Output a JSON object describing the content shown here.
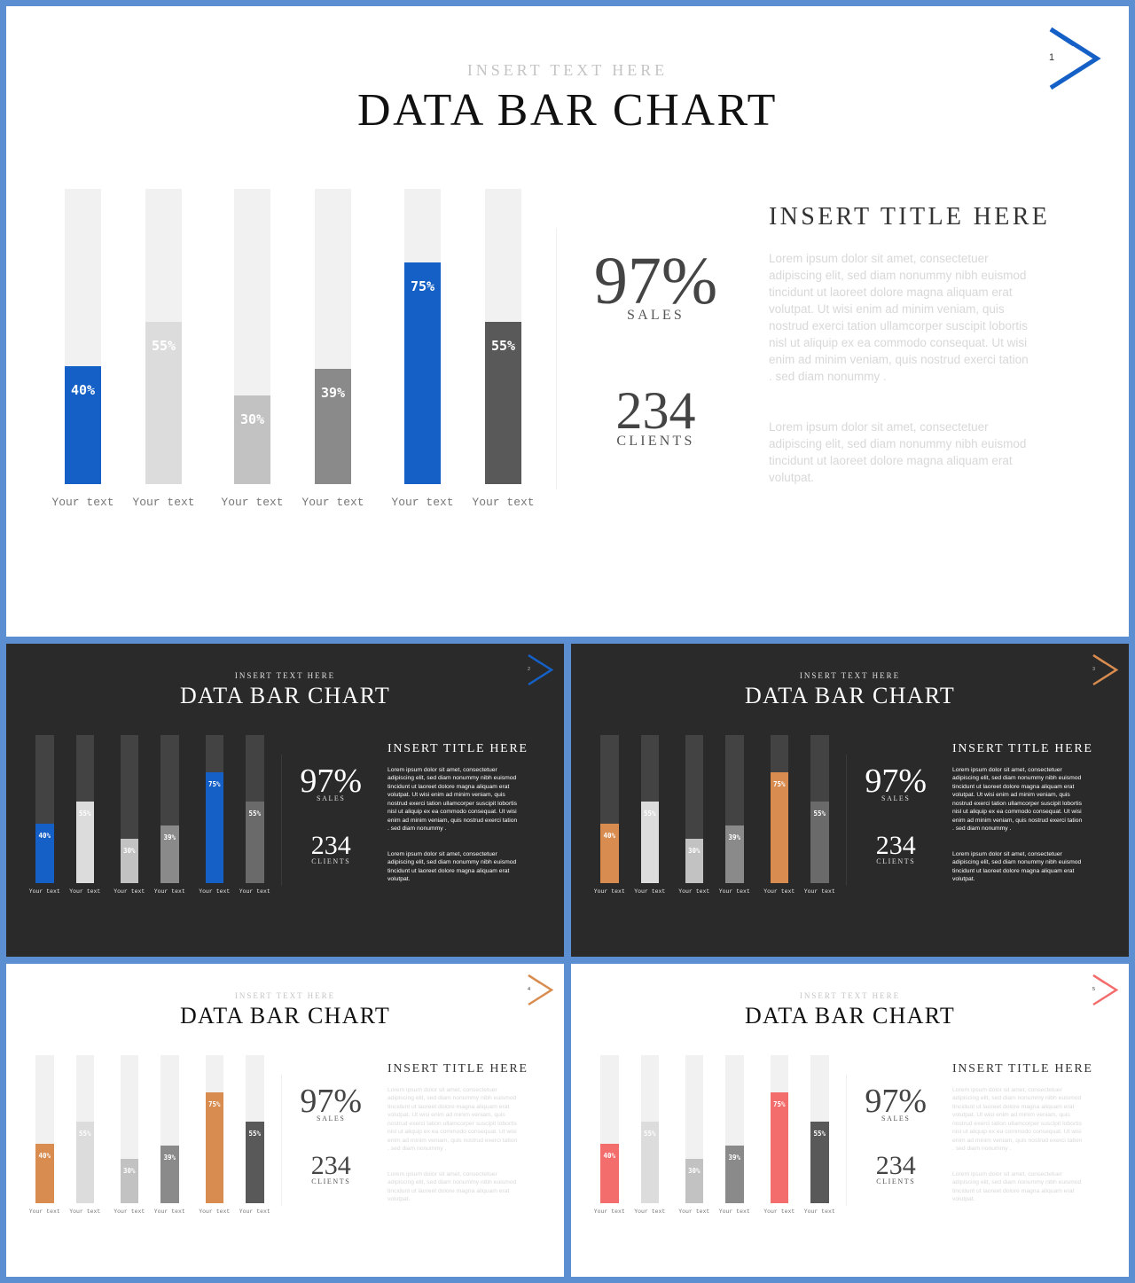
{
  "chart_data": [
    {
      "type": "bar",
      "categories": [
        "Your text",
        "Your text",
        "Your text",
        "Your text",
        "Your text",
        "Your text"
      ],
      "values": [
        40,
        55,
        30,
        39,
        75,
        55
      ],
      "value_labels": [
        "40%",
        "55%",
        "30%",
        "39%",
        "75%",
        "55%"
      ],
      "ylim": [
        0,
        100
      ],
      "title": "DATA BAR CHART",
      "subtitle": "INSERT TEXT HERE"
    }
  ],
  "slides": [
    {
      "theme": "light",
      "number": "1",
      "subtitle": "INSERT TEXT HERE",
      "title": "DATA BAR CHART",
      "accent": "#1560c6",
      "bar_colors": [
        "#1560c6",
        "#dcdcdc",
        "#c2c2c2",
        "#8a8a8a",
        "#1560c6",
        "#595959"
      ],
      "stat1": {
        "value": "97%",
        "label": "SALES"
      },
      "stat2": {
        "value": "234",
        "label": "CLIENTS"
      },
      "side_title": "INSERT TITLE HERE",
      "para1": "Lorem ipsum dolor sit amet, consectetuer adipiscing elit, sed diam nonummy nibh euismod tincidunt ut laoreet dolore magna aliquam erat volutpat. Ut wisi enim ad minim veniam, quis nostrud exerci tation ullamcorper suscipit lobortis nisl ut aliquip ex ea commodo consequat. Ut wisi enim ad minim veniam, quis nostrud exerci tation . sed diam nonummy .",
      "para2": "Lorem ipsum dolor sit amet, consectetuer adipiscing elit, sed diam nonummy nibh euismod tincidunt ut laoreet dolore magna aliquam erat volutpat."
    },
    {
      "theme": "dark",
      "number": "2",
      "subtitle": "INSERT TEXT HERE",
      "title": "DATA BAR CHART",
      "accent": "#1560c6",
      "bar_colors": [
        "#1560c6",
        "#dcdcdc",
        "#c2c2c2",
        "#8a8a8a",
        "#1560c6",
        "#6a6a6a"
      ],
      "stat1": {
        "value": "97%",
        "label": "SALES"
      },
      "stat2": {
        "value": "234",
        "label": "CLIENTS"
      },
      "side_title": "INSERT TITLE HERE",
      "para1": "Lorem ipsum dolor sit amet, consectetuer adipiscing elit, sed diam nonummy nibh euismod tincidunt ut laoreet dolore magna aliquam erat volutpat. Ut wisi enim ad minim veniam, quis nostrud exerci tation ullamcorper suscipit lobortis nisl ut aliquip ex ea commodo consequat. Ut wisi enim ad minim veniam, quis nostrud exerci tation . sed diam nonummy .",
      "para2": "Lorem ipsum dolor sit amet, consectetuer adipiscing elit, sed diam nonummy nibh euismod tincidunt ut laoreet dolore magna aliquam erat volutpat."
    },
    {
      "theme": "dark",
      "number": "3",
      "subtitle": "INSERT TEXT HERE",
      "title": "DATA BAR CHART",
      "accent": "#d98c4f",
      "bar_colors": [
        "#d98c4f",
        "#dcdcdc",
        "#c2c2c2",
        "#8a8a8a",
        "#d98c4f",
        "#6a6a6a"
      ],
      "stat1": {
        "value": "97%",
        "label": "SALES"
      },
      "stat2": {
        "value": "234",
        "label": "CLIENTS"
      },
      "side_title": "INSERT TITLE HERE",
      "para1": "Lorem ipsum dolor sit amet, consectetuer adipiscing elit, sed diam nonummy nibh euismod tincidunt ut laoreet dolore magna aliquam erat volutpat. Ut wisi enim ad minim veniam, quis nostrud exerci tation ullamcorper suscipit lobortis nisl ut aliquip ex ea commodo consequat. Ut wisi enim ad minim veniam, quis nostrud exerci tation . sed diam nonummy .",
      "para2": "Lorem ipsum dolor sit amet, consectetuer adipiscing elit, sed diam nonummy nibh euismod tincidunt ut laoreet dolore magna aliquam erat volutpat."
    },
    {
      "theme": "light",
      "number": "4",
      "subtitle": "INSERT TEXT HERE",
      "title": "DATA BAR CHART",
      "accent": "#d98c4f",
      "bar_colors": [
        "#d98c4f",
        "#dcdcdc",
        "#c2c2c2",
        "#8a8a8a",
        "#d98c4f",
        "#595959"
      ],
      "stat1": {
        "value": "97%",
        "label": "SALES"
      },
      "stat2": {
        "value": "234",
        "label": "CLIENTS"
      },
      "side_title": "INSERT TITLE HERE",
      "para1": "Lorem ipsum dolor sit amet, consectetuer adipiscing elit, sed diam nonummy nibh euismod tincidunt ut laoreet dolore magna aliquam erat volutpat. Ut wisi enim ad minim veniam, quis nostrud exerci tation ullamcorper suscipit lobortis nisl ut aliquip ex ea commodo consequat. Ut wisi enim ad minim veniam, quis nostrud exerci tation . sed diam nonummy .",
      "para2": "Lorem ipsum dolor sit amet, consectetuer adipiscing elit, sed diam nonummy nibh euismod tincidunt ut laoreet dolore magna aliquam erat volutpat."
    },
    {
      "theme": "light",
      "number": "5",
      "subtitle": "INSERT TEXT HERE",
      "title": "DATA BAR CHART",
      "accent": "#f46d6d",
      "bar_colors": [
        "#f46d6d",
        "#dcdcdc",
        "#c2c2c2",
        "#8a8a8a",
        "#f46d6d",
        "#595959"
      ],
      "stat1": {
        "value": "97%",
        "label": "SALES"
      },
      "stat2": {
        "value": "234",
        "label": "CLIENTS"
      },
      "side_title": "INSERT TITLE HERE",
      "para1": "Lorem ipsum dolor sit amet, consectetuer adipiscing elit, sed diam nonummy nibh euismod tincidunt ut laoreet dolore magna aliquam erat volutpat. Ut wisi enim ad minim veniam, quis nostrud exerci tation ullamcorper suscipit lobortis nisl ut aliquip ex ea commodo consequat. Ut wisi enim ad minim veniam, quis nostrud exerci tation . sed diam nonummy .",
      "para2": "Lorem ipsum dolor sit amet, consectetuer adipiscing elit, sed diam nonummy nibh euismod tincidunt ut laoreet dolore magna aliquam erat volutpat."
    }
  ]
}
